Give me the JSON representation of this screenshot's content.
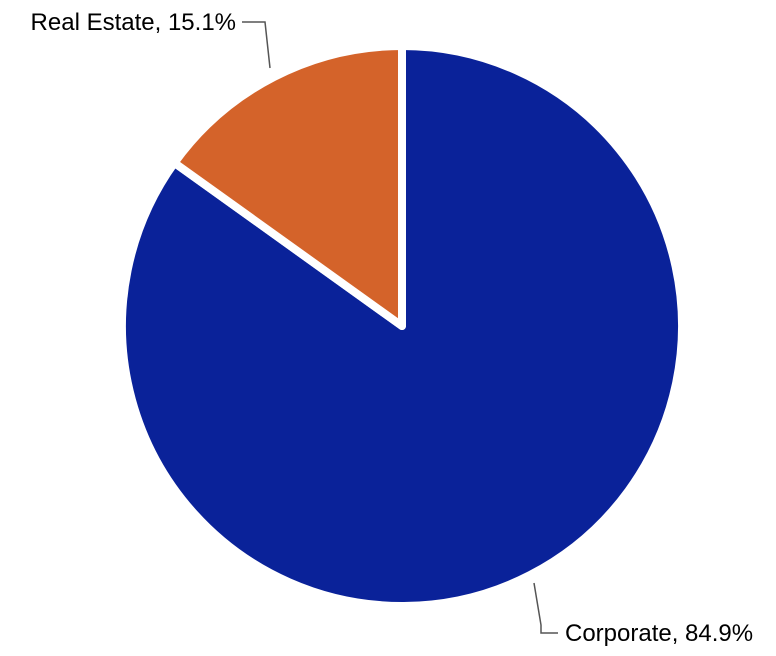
{
  "chart_data": {
    "type": "pie",
    "title": "",
    "start_angle_deg": 0,
    "direction": "clockwise",
    "slices": [
      {
        "name": "Corporate",
        "value": 84.9,
        "label": "Corporate, 84.9%",
        "color": "#0a2299"
      },
      {
        "name": "Real Estate",
        "value": 15.1,
        "label": "Real Estate, 15.1%",
        "color": "#d4632a"
      }
    ],
    "slice_separator_color": "#ffffff"
  }
}
